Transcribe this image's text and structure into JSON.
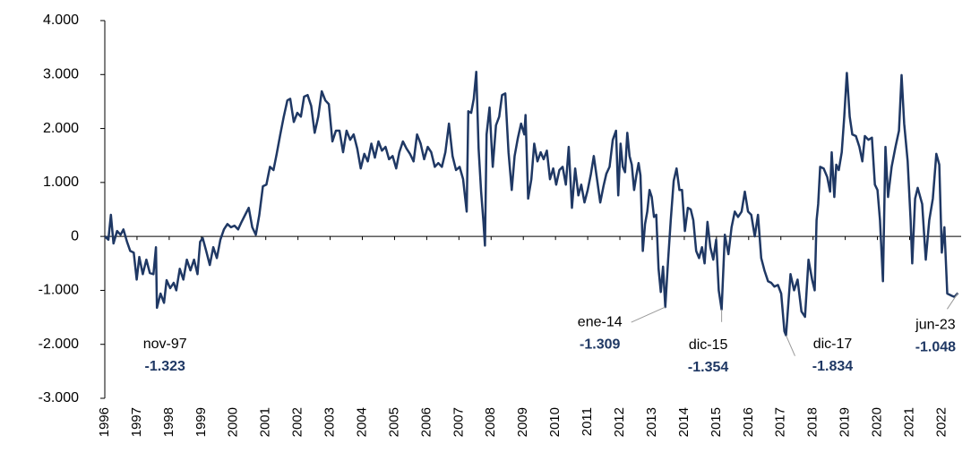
{
  "chart_data": {
    "type": "line",
    "color": "#1f3864",
    "x": [
      1996.0,
      1996.11,
      1996.19,
      1996.27,
      1996.38,
      1996.49,
      1996.58,
      1996.69,
      1996.79,
      1996.9,
      1996.99,
      1997.07,
      1997.18,
      1997.29,
      1997.4,
      1997.51,
      1997.59,
      1997.62,
      1997.73,
      1997.84,
      1997.92,
      1998.03,
      1998.14,
      1998.22,
      1998.33,
      1998.44,
      1998.55,
      1998.66,
      1998.77,
      1998.88,
      1998.96,
      1999.04,
      1999.15,
      1999.26,
      1999.37,
      1999.48,
      1999.59,
      1999.7,
      1999.81,
      1999.92,
      2000.03,
      2000.14,
      2000.25,
      2000.36,
      2000.47,
      2000.58,
      2000.69,
      2000.8,
      2000.91,
      2001.02,
      2001.13,
      2001.24,
      2001.34,
      2001.45,
      2001.56,
      2001.67,
      2001.76,
      2001.87,
      2001.98,
      2002.09,
      2002.19,
      2002.3,
      2002.41,
      2002.52,
      2002.63,
      2002.74,
      2002.85,
      2002.96,
      2003.07,
      2003.18,
      2003.29,
      2003.4,
      2003.51,
      2003.62,
      2003.73,
      2003.84,
      2003.95,
      2004.06,
      2004.17,
      2004.28,
      2004.39,
      2004.5,
      2004.61,
      2004.72,
      2004.83,
      2004.94,
      2005.05,
      2005.15,
      2005.26,
      2005.37,
      2005.48,
      2005.59,
      2005.7,
      2005.81,
      2005.92,
      2006.03,
      2006.14,
      2006.25,
      2006.36,
      2006.47,
      2006.58,
      2006.69,
      2006.8,
      2006.91,
      2007.02,
      2007.13,
      2007.24,
      2007.29,
      2007.38,
      2007.46,
      2007.54,
      2007.61,
      2007.69,
      2007.76,
      2007.81,
      2007.86,
      2007.95,
      2008.05,
      2008.15,
      2008.25,
      2008.34,
      2008.44,
      2008.54,
      2008.64,
      2008.73,
      2008.83,
      2008.93,
      2009.03,
      2009.07,
      2009.15,
      2009.25,
      2009.34,
      2009.44,
      2009.54,
      2009.63,
      2009.73,
      2009.83,
      2009.93,
      2010.02,
      2010.12,
      2010.22,
      2010.32,
      2010.41,
      2010.51,
      2010.61,
      2010.71,
      2010.8,
      2010.9,
      2011.0,
      2011.1,
      2011.19,
      2011.29,
      2011.39,
      2011.49,
      2011.58,
      2011.68,
      2011.78,
      2011.88,
      2011.95,
      2012.02,
      2012.09,
      2012.16,
      2012.23,
      2012.3,
      2012.37,
      2012.44,
      2012.51,
      2012.58,
      2012.64,
      2012.71,
      2012.78,
      2012.85,
      2012.92,
      2012.99,
      2013.06,
      2013.13,
      2013.2,
      2013.27,
      2013.34,
      2013.41,
      2013.5,
      2013.58,
      2013.67,
      2013.76,
      2013.85,
      2013.93,
      2014.02,
      2014.11,
      2014.2,
      2014.28,
      2014.37,
      2014.46,
      2014.55,
      2014.63,
      2014.72,
      2014.81,
      2014.9,
      2014.99,
      2015.07,
      2015.16,
      2015.26,
      2015.37,
      2015.47,
      2015.57,
      2015.67,
      2015.78,
      2015.88,
      2015.98,
      2016.08,
      2016.19,
      2016.29,
      2016.39,
      2016.49,
      2016.6,
      2016.7,
      2016.8,
      2016.91,
      2017.01,
      2017.11,
      2017.16,
      2017.3,
      2017.41,
      2017.52,
      2017.64,
      2017.75,
      2017.86,
      2017.97,
      2018.05,
      2018.11,
      2018.16,
      2018.22,
      2018.33,
      2018.44,
      2018.53,
      2018.58,
      2018.66,
      2018.72,
      2018.8,
      2018.89,
      2018.97,
      2019.05,
      2019.14,
      2019.22,
      2019.33,
      2019.44,
      2019.53,
      2019.61,
      2019.72,
      2019.83,
      2019.92,
      2020.0,
      2020.08,
      2020.17,
      2020.25,
      2020.33,
      2020.44,
      2020.56,
      2020.67,
      2020.75,
      2020.83,
      2020.94,
      2021.03,
      2021.08,
      2021.17,
      2021.25,
      2021.39,
      2021.5,
      2021.61,
      2021.72,
      2021.83,
      2021.92,
      2022.0,
      2022.08,
      2022.17,
      2022.31,
      2022.39,
      2022.5
    ],
    "values": [
      0,
      -60,
      400,
      -130,
      100,
      30,
      130,
      -100,
      -270,
      -300,
      -800,
      -380,
      -700,
      -430,
      -680,
      -700,
      -200,
      -1323,
      -1060,
      -1230,
      -810,
      -960,
      -860,
      -1000,
      -600,
      -800,
      -430,
      -630,
      -430,
      -700,
      -100,
      -30,
      -270,
      -530,
      -200,
      -400,
      -60,
      130,
      230,
      170,
      200,
      130,
      270,
      400,
      530,
      170,
      30,
      400,
      930,
      960,
      1290,
      1230,
      1530,
      1890,
      2220,
      2520,
      2550,
      2120,
      2290,
      2220,
      2590,
      2620,
      2420,
      1920,
      2220,
      2690,
      2520,
      2450,
      1760,
      1960,
      1960,
      1560,
      1960,
      1790,
      1890,
      1630,
      1260,
      1530,
      1390,
      1720,
      1460,
      1760,
      1590,
      1660,
      1430,
      1490,
      1260,
      1560,
      1760,
      1630,
      1530,
      1390,
      1890,
      1720,
      1430,
      1660,
      1560,
      1290,
      1360,
      1290,
      1560,
      2090,
      1490,
      1230,
      1290,
      1060,
      460,
      2320,
      2290,
      2550,
      3050,
      1630,
      830,
      270,
      -170,
      1890,
      2390,
      1290,
      2060,
      2220,
      2620,
      2650,
      1560,
      860,
      1490,
      1820,
      2090,
      1890,
      2250,
      700,
      1060,
      1720,
      1390,
      1560,
      1430,
      1590,
      1060,
      1260,
      960,
      1230,
      1290,
      960,
      1660,
      530,
      1260,
      760,
      960,
      630,
      860,
      1160,
      1490,
      1060,
      630,
      930,
      1160,
      1290,
      1790,
      1960,
      760,
      1720,
      1290,
      1190,
      1920,
      1490,
      1330,
      860,
      1130,
      1360,
      1130,
      -270,
      230,
      460,
      860,
      730,
      360,
      400,
      -600,
      -1030,
      -560,
      -1309,
      -430,
      300,
      1030,
      1260,
      860,
      860,
      100,
      530,
      500,
      300,
      -270,
      -400,
      -200,
      -500,
      270,
      -200,
      -430,
      -60,
      -1000,
      -1354,
      30,
      -330,
      170,
      460,
      360,
      460,
      830,
      460,
      400,
      0,
      400,
      -400,
      -630,
      -830,
      -860,
      -930,
      -900,
      -1060,
      -1760,
      -1834,
      -700,
      -1000,
      -800,
      -1390,
      -1490,
      -430,
      -800,
      -1000,
      300,
      600,
      1290,
      1260,
      1100,
      830,
      1560,
      730,
      1330,
      1230,
      1560,
      2220,
      3030,
      2220,
      1890,
      1860,
      1660,
      1390,
      1860,
      1790,
      1830,
      960,
      860,
      300,
      -830,
      1660,
      730,
      1290,
      1660,
      1960,
      2990,
      2090,
      1390,
      300,
      -500,
      700,
      900,
      600,
      -430,
      300,
      700,
      1530,
      1330,
      -300,
      170,
      -1060,
      -1100,
      -1120,
      -1048
    ],
    "xlim": [
      1996,
      2022.6
    ],
    "xticks": [
      1996,
      1997,
      1998,
      1999,
      2000,
      2001,
      2002,
      2003,
      2004,
      2005,
      2006,
      2007,
      2008,
      2009,
      2010,
      2011,
      2012,
      2013,
      2014,
      2015,
      2016,
      2017,
      2018,
      2019,
      2020,
      2021,
      2022
    ],
    "ylim": [
      -3000,
      4000
    ],
    "yticks": [
      {
        "value": 4000,
        "label": "4.000"
      },
      {
        "value": 3000,
        "label": "3.000"
      },
      {
        "value": 2000,
        "label": "2.000"
      },
      {
        "value": 1000,
        "label": "1.000"
      },
      0,
      {
        "value": -1000,
        "label": "-1.000"
      },
      {
        "value": -2000,
        "label": "-2.000"
      },
      {
        "value": -3000,
        "label": "-3.000"
      }
    ],
    "grid": false,
    "annotations": [
      {
        "label": "nov-97",
        "x": 1997.62,
        "value": -1323,
        "value_label": "-1.323"
      },
      {
        "label": "ene-14",
        "x": 2013.41,
        "value": -1309,
        "value_label": "-1.309"
      },
      {
        "label": "dic-15",
        "x": 2015.16,
        "value": -1354,
        "value_label": "-1.354"
      },
      {
        "label": "dic-17",
        "x": 2017.16,
        "value": -1834,
        "value_label": "-1.834"
      },
      {
        "label": "jun-23",
        "x": 2022.5,
        "value": -1048,
        "value_label": "-1.048"
      }
    ]
  }
}
